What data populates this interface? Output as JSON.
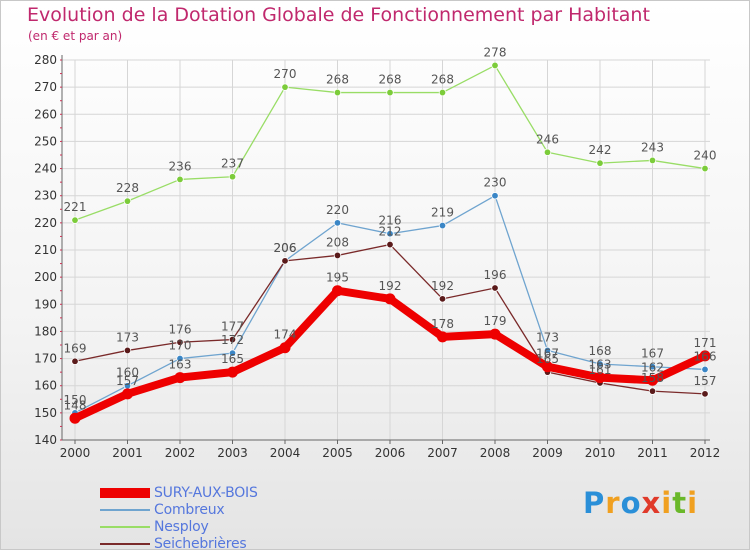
{
  "title": "Evolution de la Dotation Globale de Fonctionnement par Habitant",
  "subtitle": "(en € et par an)",
  "logo": {
    "text": "Proxiti",
    "colors": [
      "#2a8fd8",
      "#f0a020",
      "#2a8fd8",
      "#e03a2a",
      "#f0a020",
      "#6ab82a",
      "#f0a020"
    ]
  },
  "chart_data": {
    "type": "line",
    "title": "Evolution de la Dotation Globale de Fonctionnement par Habitant",
    "subtitle": "(en € et par an)",
    "xlabel": "",
    "ylabel": "",
    "x": [
      "2000",
      "2001",
      "2002",
      "2003",
      "2004",
      "2005",
      "2006",
      "2007",
      "2008",
      "2009",
      "2010",
      "2011",
      "2012"
    ],
    "ylim": [
      140,
      280
    ],
    "yticks": [
      140,
      150,
      160,
      170,
      180,
      190,
      200,
      210,
      220,
      230,
      240,
      250,
      260,
      270,
      280
    ],
    "grid": true,
    "legend_position": "bottom-left",
    "series": [
      {
        "name": "SURY-AUX-BOIS",
        "color": "#ee0000",
        "marker_color": "#ee0000",
        "values": [
          148,
          157,
          163,
          165,
          174,
          195,
          192,
          178,
          179,
          167,
          163,
          162,
          171
        ],
        "labels": [
          "148",
          "157",
          "163",
          "165",
          "174",
          "195",
          "192",
          "178",
          "179",
          "167",
          "163",
          "162",
          "171"
        ]
      },
      {
        "name": "Combreux",
        "color": "#6fa4cf",
        "marker_color": "#3a86c6",
        "values": [
          150,
          160,
          170,
          172,
          206,
          220,
          216,
          219,
          230,
          173,
          168,
          167,
          166
        ],
        "labels": [
          "150",
          "160",
          "170",
          "172",
          "206",
          "220",
          "216",
          "219",
          "230",
          "173",
          "168",
          "167",
          "166"
        ]
      },
      {
        "name": "Nesploy",
        "color": "#99dd66",
        "marker_color": "#7ccc3a",
        "values": [
          221,
          228,
          236,
          237,
          270,
          268,
          268,
          268,
          278,
          246,
          242,
          243,
          240
        ],
        "labels": [
          "221",
          "228",
          "236",
          "237",
          "270",
          "268",
          "268",
          "268",
          "278",
          "246",
          "242",
          "243",
          "240"
        ]
      },
      {
        "name": "Seichebrières",
        "color": "#7a2a2a",
        "marker_color": "#5a1a1a",
        "values": [
          169,
          173,
          176,
          177,
          206,
          208,
          212,
          192,
          196,
          165,
          161,
          158,
          157
        ],
        "labels": [
          "169",
          "173",
          "176",
          "177",
          "206",
          "208",
          "212",
          "192",
          "196",
          "165",
          "161",
          "158",
          "157"
        ]
      }
    ]
  },
  "legend": {
    "items": [
      {
        "label": "SURY-AUX-BOIS",
        "color": "#ee0000",
        "text_color": "#5577dd",
        "width": 10
      },
      {
        "label": "Combreux",
        "color": "#6fa4cf",
        "text_color": "#5577dd",
        "width": 2
      },
      {
        "label": "Nesploy",
        "color": "#99dd66",
        "text_color": "#5577dd",
        "width": 2
      },
      {
        "label": "Seichebrières",
        "color": "#7a2a2a",
        "text_color": "#5577dd",
        "width": 2
      }
    ]
  }
}
